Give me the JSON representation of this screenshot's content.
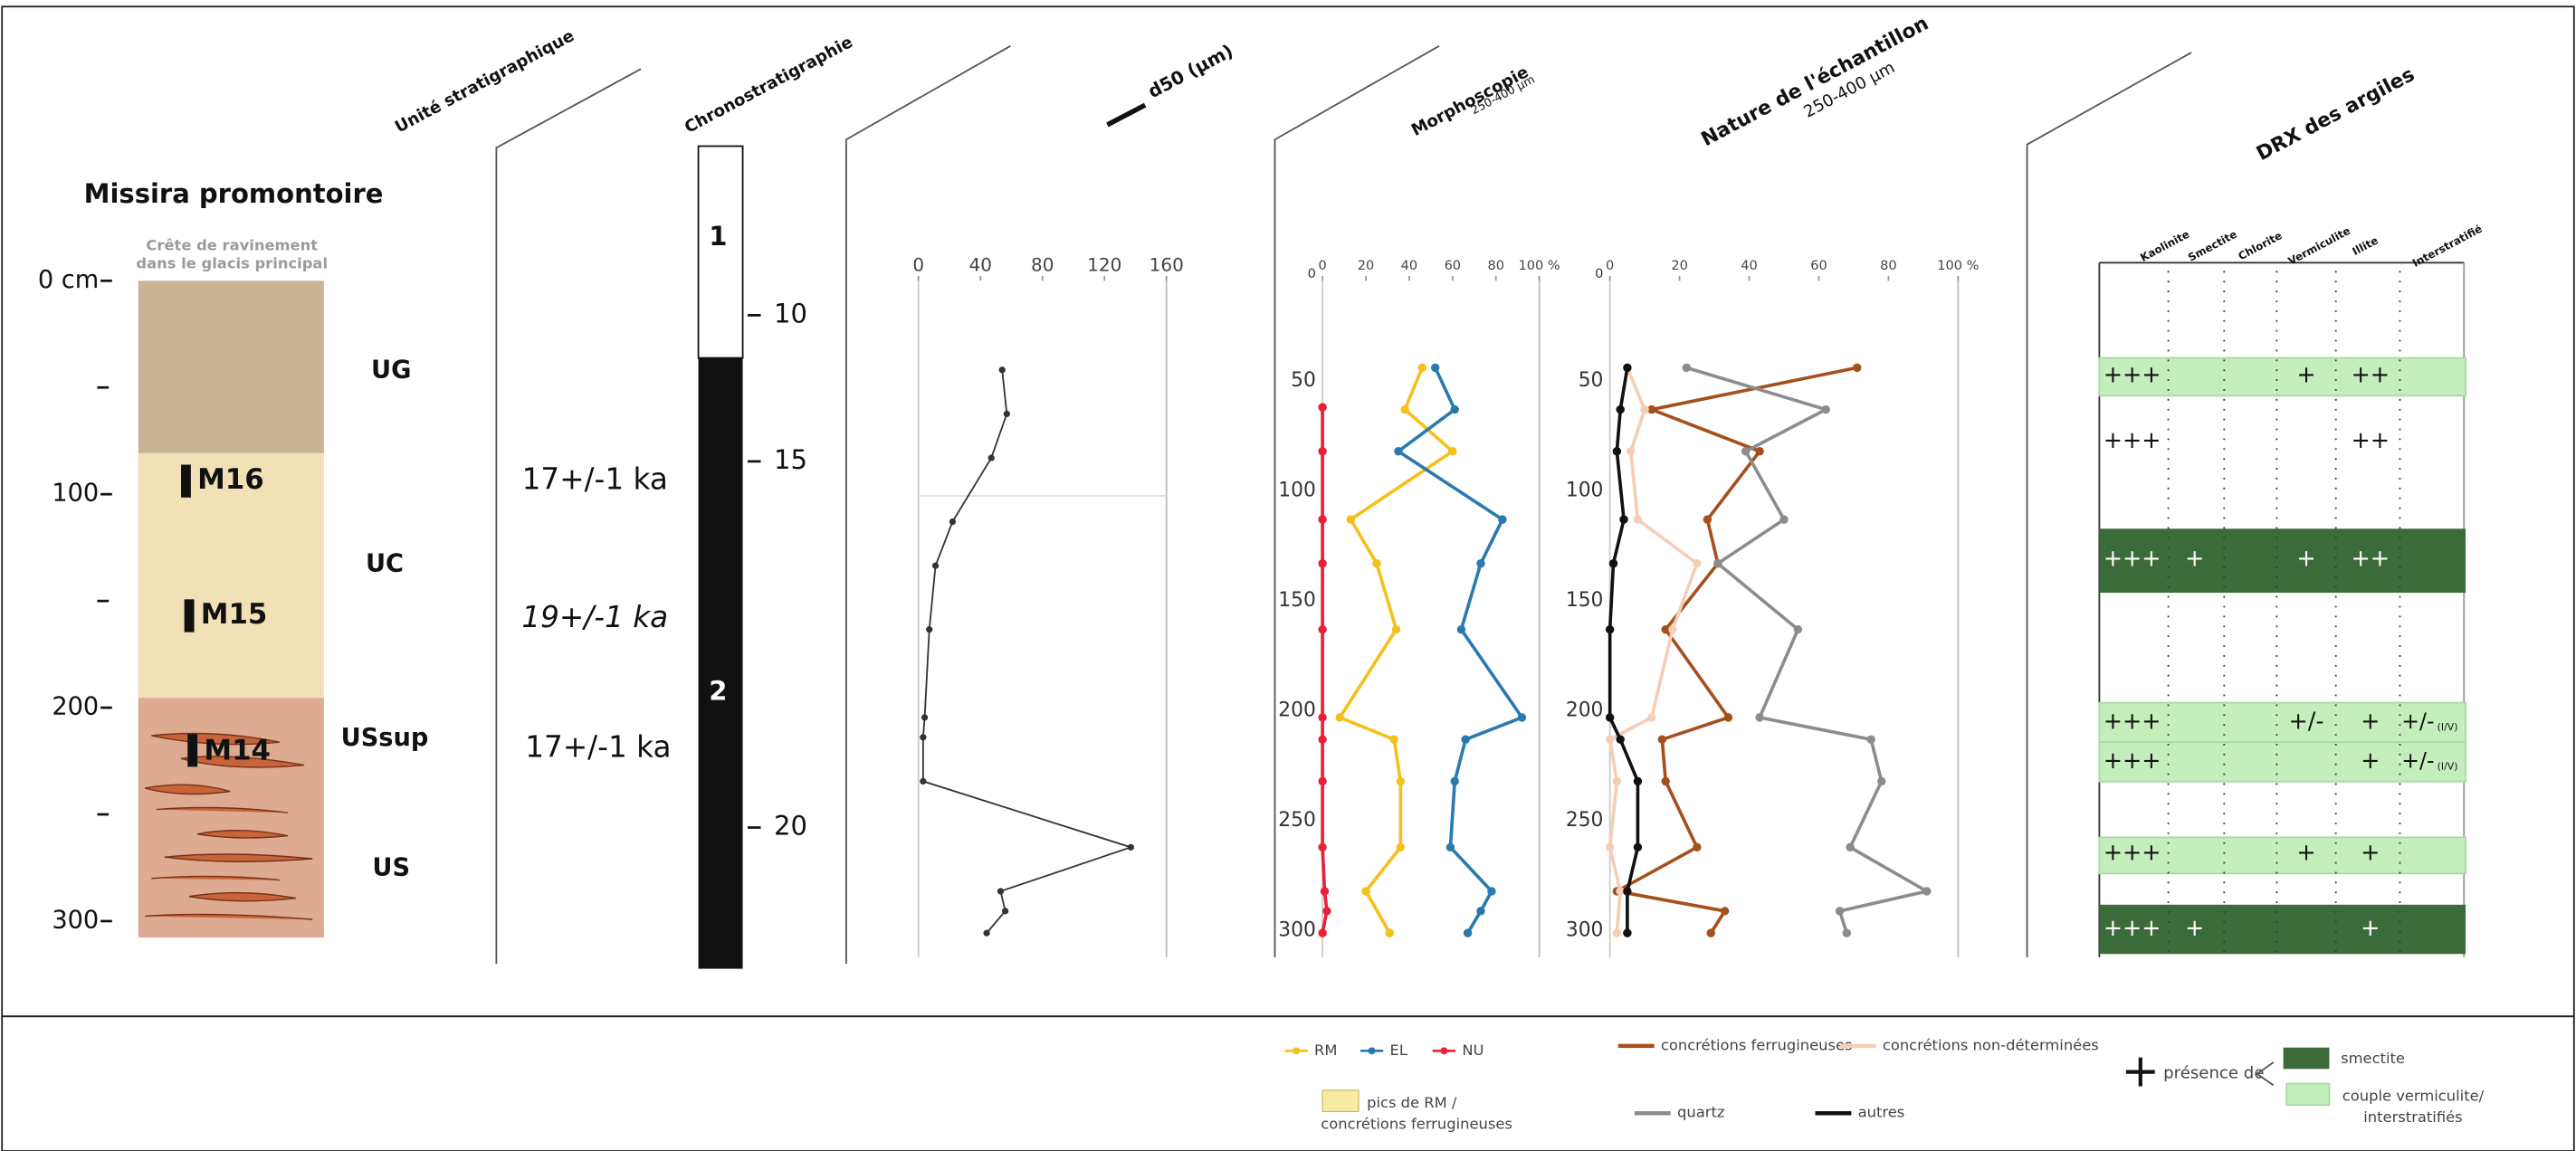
{
  "log": {
    "title": "Missira promontoire",
    "subtitle": [
      "Crête de ravinement",
      "dans le glacis principal"
    ],
    "depth_ticks": [
      {
        "value": 0,
        "label": "0 cm"
      },
      100,
      200,
      300
    ],
    "units": [
      "UG",
      "UC",
      "USsup",
      "US"
    ],
    "samples": [
      "M16",
      "M15",
      "M14"
    ]
  },
  "columns": {
    "unit": "Unité stratigraphique",
    "chrono": "Chronostratigraphie",
    "d50": "d50 (µm)",
    "morpho": "Morphoscopie",
    "nature": "Nature de l'échantillon",
    "drx": "DRX des argiles",
    "fraction": "250-400 µm"
  },
  "ages": [
    "17+/-1 ka",
    "19+/-1 ka",
    "17+/-1 ka"
  ],
  "chronostratigraphy": {
    "periods": [
      "1",
      "2"
    ],
    "ticks": [
      10,
      15,
      20
    ]
  },
  "chart_data": [
    {
      "type": "line",
      "xlim": [
        0,
        160
      ],
      "xticks": [
        0,
        40,
        80,
        120,
        160
      ],
      "ylim": [
        0,
        312
      ],
      "series": [
        {
          "color": "#333333",
          "values": [
            54,
            57,
            47,
            22,
            11,
            7,
            4,
            3,
            3,
            137,
            53,
            56,
            44
          ],
          "depth": [
            45,
            65,
            85,
            114,
            134,
            163,
            203,
            212,
            232,
            262,
            282,
            291,
            301
          ]
        }
      ]
    },
    {
      "type": "line",
      "xlim": [
        0,
        100
      ],
      "xticks": [
        0,
        20,
        40,
        60,
        80,
        {
          "value": 100,
          "label": "100 %"
        }
      ],
      "ylim": [
        0,
        312
      ],
      "yticks": [
        0,
        50,
        100,
        150,
        200,
        250,
        300
      ],
      "series": [
        {
          "name": "RM",
          "color": "#f5c01a",
          "values": [
            46,
            38,
            60,
            13,
            25,
            34,
            8,
            33,
            36,
            36,
            20,
            31
          ],
          "depth": [
            44,
            63,
            82,
            113,
            133,
            163,
            203,
            213,
            232,
            262,
            282,
            301
          ]
        },
        {
          "name": "EL",
          "color": "#2a7ab0",
          "values": [
            52,
            61,
            35,
            83,
            73,
            64,
            92,
            66,
            61,
            59,
            78,
            73,
            67
          ],
          "depth": [
            44,
            63,
            82,
            113,
            133,
            163,
            203,
            213,
            232,
            262,
            282,
            291,
            301
          ]
        },
        {
          "name": "NU",
          "color": "#e8203a",
          "values": [
            0,
            0,
            0,
            0,
            0,
            0,
            0,
            0,
            0,
            1,
            2,
            0
          ],
          "depth": [
            62,
            82,
            113,
            133,
            163,
            203,
            213,
            232,
            262,
            282,
            291,
            301
          ]
        }
      ]
    },
    {
      "type": "line",
      "xlim": [
        0,
        100
      ],
      "xticks": [
        0,
        20,
        40,
        60,
        80,
        {
          "value": 100,
          "label": "100 %"
        }
      ],
      "ylim": [
        0,
        312
      ],
      "yticks": [
        0,
        50,
        100,
        150,
        200,
        250,
        300
      ],
      "series": [
        {
          "name": "concrétions ferrugineuses",
          "color": "#a5501c",
          "values": [
            71,
            12,
            43,
            28,
            31,
            16,
            34,
            15,
            16,
            25,
            2,
            33,
            29
          ],
          "depth": [
            44,
            63,
            82,
            113,
            133,
            163,
            203,
            213,
            232,
            262,
            282,
            291,
            301
          ]
        },
        {
          "name": "concrétions non-déterminées",
          "color": "#f6cdb6",
          "values": [
            5,
            10,
            6,
            8,
            25,
            18,
            12,
            0,
            2,
            0,
            3,
            2
          ],
          "depth": [
            44,
            63,
            82,
            113,
            133,
            163,
            203,
            213,
            232,
            262,
            282,
            301
          ]
        },
        {
          "name": "quartz",
          "color": "#8c8c8c",
          "values": [
            22,
            62,
            39,
            50,
            31,
            54,
            43,
            75,
            78,
            69,
            91,
            66,
            68
          ],
          "depth": [
            44,
            63,
            82,
            113,
            133,
            163,
            203,
            213,
            232,
            262,
            282,
            291,
            301
          ]
        },
        {
          "name": "autres",
          "color": "#111111",
          "values": [
            5,
            3,
            2,
            4,
            1,
            0,
            0,
            3,
            8,
            8,
            5,
            5
          ],
          "depth": [
            44,
            63,
            82,
            113,
            133,
            163,
            203,
            213,
            232,
            262,
            282,
            301
          ]
        }
      ]
    }
  ],
  "drx": {
    "columns": [
      "Kaolinite",
      "Smectite",
      "Chlorite",
      "Vermiculite",
      "Illite",
      "Interstratifié"
    ],
    "rows": [
      {
        "color": "#c4efbd",
        "cells": [
          "+++",
          null,
          null,
          "+",
          "++",
          null
        ]
      },
      {
        "color": null,
        "cells": [
          "+++",
          null,
          null,
          null,
          "++",
          null
        ]
      },
      {
        "color": "#3c6b3a",
        "cells": [
          "+++",
          "+",
          null,
          "+",
          "++",
          null
        ]
      },
      {
        "color": "#c4efbd",
        "cells": [
          "+++",
          null,
          null,
          "+/-",
          "+",
          {
            "text": "+/-",
            "sub": "(I/V)"
          }
        ]
      },
      {
        "color": "#c4efbd",
        "cells": [
          "+++",
          null,
          null,
          null,
          "+",
          {
            "text": "+/-",
            "sub": "(I/V)"
          }
        ]
      },
      {
        "color": "#c4efbd",
        "cells": [
          "+++",
          null,
          null,
          "+",
          "+",
          null
        ]
      },
      {
        "color": "#3c6b3a",
        "cells": [
          "+++",
          "+",
          null,
          null,
          "+",
          null
        ]
      }
    ]
  },
  "legend": {
    "peaks": {
      "color": "#f8eba6",
      "lines": [
        "pics de RM /",
        "concrétions ferrugineuses"
      ]
    },
    "symbol": "+",
    "presence": "présence de",
    "smectite": {
      "color": "#3c6b3a",
      "lines": [
        "smectite"
      ]
    },
    "couple": {
      "color": "#c4efbd",
      "lines": [
        "couple vermiculite/",
        "interstratifiés"
      ]
    }
  }
}
